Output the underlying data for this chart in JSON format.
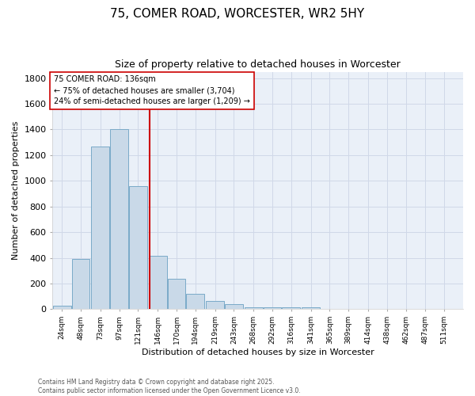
{
  "title": "75, COMER ROAD, WORCESTER, WR2 5HY",
  "subtitle": "Size of property relative to detached houses in Worcester",
  "xlabel": "Distribution of detached houses by size in Worcester",
  "ylabel": "Number of detached properties",
  "bar_labels": [
    "24sqm",
    "48sqm",
    "73sqm",
    "97sqm",
    "121sqm",
    "146sqm",
    "170sqm",
    "194sqm",
    "219sqm",
    "243sqm",
    "268sqm",
    "292sqm",
    "316sqm",
    "341sqm",
    "365sqm",
    "389sqm",
    "414sqm",
    "438sqm",
    "462sqm",
    "487sqm",
    "511sqm"
  ],
  "bar_values": [
    25,
    390,
    1265,
    1400,
    960,
    415,
    235,
    120,
    65,
    40,
    15,
    15,
    12,
    12,
    0,
    0,
    0,
    0,
    0,
    0,
    0
  ],
  "bar_color": "#c9d9e8",
  "bar_edge_color": "#7aaac8",
  "vline_x": 136,
  "vline_color": "#cc0000",
  "annotation_text": "75 COMER ROAD: 136sqm\n← 75% of detached houses are smaller (3,704)\n24% of semi-detached houses are larger (1,209) →",
  "annotation_box_color": "#ffffff",
  "annotation_box_edge_color": "#cc0000",
  "ylim": [
    0,
    1850
  ],
  "yticks": [
    0,
    200,
    400,
    600,
    800,
    1000,
    1200,
    1400,
    1600,
    1800
  ],
  "grid_color": "#d0d8e8",
  "bg_color": "#eaf0f8",
  "footer_line1": "Contains HM Land Registry data © Crown copyright and database right 2025.",
  "footer_line2": "Contains public sector information licensed under the Open Government Licence v3.0.",
  "bin_width": 23,
  "xlim_left": 12,
  "xlim_right": 535
}
